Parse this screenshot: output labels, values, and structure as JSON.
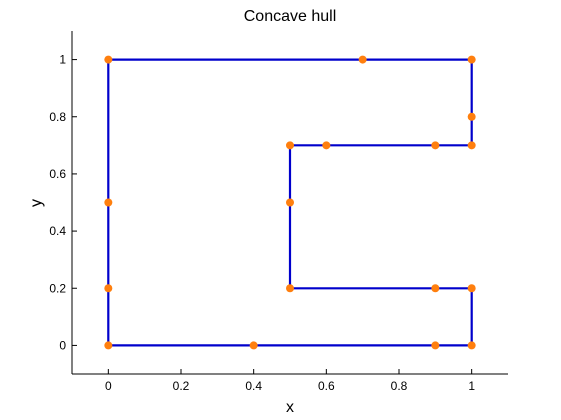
{
  "chart_data": {
    "type": "line",
    "title": "Concave hull",
    "xlabel": "x",
    "ylabel": "y",
    "xlim": [
      -0.1,
      1.1
    ],
    "ylim": [
      -0.1,
      1.1
    ],
    "xticks": [
      0,
      0.2,
      0.4,
      0.6,
      0.8,
      1
    ],
    "xtick_labels": [
      "0",
      "0.2",
      "0.4",
      "0.6",
      "0.8",
      "1"
    ],
    "yticks": [
      0,
      0.2,
      0.4,
      0.6,
      0.8,
      1
    ],
    "ytick_labels": [
      "0",
      "0.2",
      "0.4",
      "0.6",
      "0.8",
      "1"
    ],
    "grid": false,
    "series": [
      {
        "kind": "line",
        "color": "#0000cc",
        "points": [
          [
            0,
            1
          ],
          [
            0.7,
            1
          ],
          [
            1,
            1
          ],
          [
            1,
            0.8
          ],
          [
            1,
            0.7
          ],
          [
            0.9,
            0.7
          ],
          [
            0.6,
            0.7
          ],
          [
            0.5,
            0.7
          ],
          [
            0.5,
            0.5
          ],
          [
            0.5,
            0.2
          ],
          [
            0.9,
            0.2
          ],
          [
            1,
            0.2
          ],
          [
            1,
            0
          ],
          [
            0.9,
            0
          ],
          [
            0.4,
            0
          ],
          [
            0,
            0
          ],
          [
            0,
            0.2
          ],
          [
            0,
            0.5
          ],
          [
            0,
            1
          ]
        ]
      },
      {
        "kind": "scatter",
        "color": "#ff7f0e",
        "points": [
          [
            0,
            1
          ],
          [
            0.7,
            1
          ],
          [
            1,
            1
          ],
          [
            1,
            0.8
          ],
          [
            1,
            0.7
          ],
          [
            0.9,
            0.7
          ],
          [
            0.6,
            0.7
          ],
          [
            0.5,
            0.7
          ],
          [
            0.5,
            0.5
          ],
          [
            0.5,
            0.2
          ],
          [
            0.9,
            0.2
          ],
          [
            1,
            0.2
          ],
          [
            1,
            0
          ],
          [
            0.9,
            0
          ],
          [
            0.4,
            0
          ],
          [
            0,
            0
          ],
          [
            0,
            0.2
          ],
          [
            0,
            0.5
          ]
        ]
      }
    ]
  }
}
